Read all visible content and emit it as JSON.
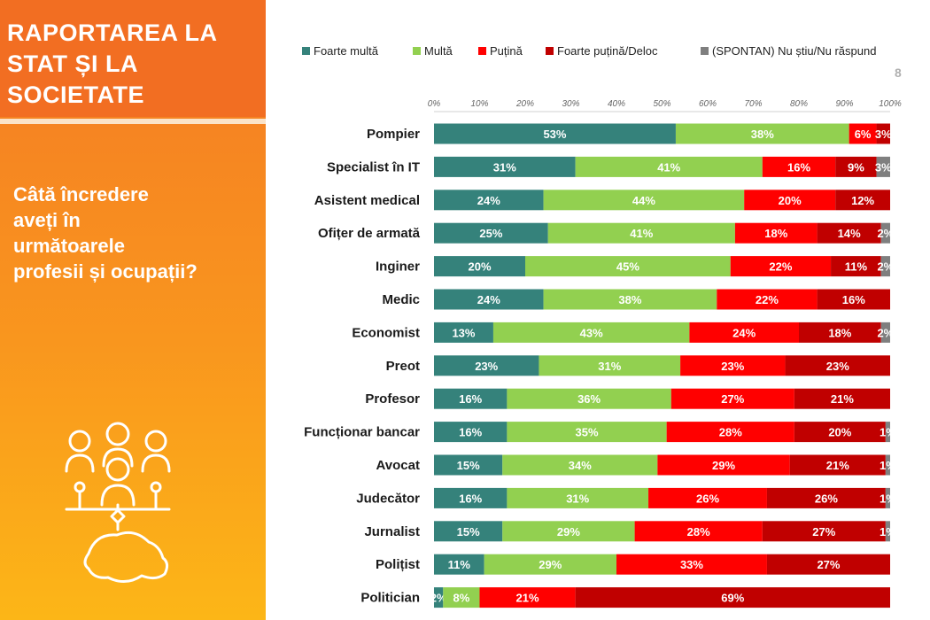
{
  "sidebar": {
    "title": "RAPORTAREA LA\nSTAT ȘI LA\nSOCIETATE",
    "question": "Câtă încredere\naveți în\nurmătoarele\nprofesii și ocupații?",
    "icon": "people-network-romania-map-icon"
  },
  "page_number": "8",
  "colors": {
    "foarte_multa": "#35827b",
    "multa": "#92d050",
    "putina": "#ff0000",
    "foarte_putina": "#c00000",
    "spontan": "#7f7f7f",
    "sidebar_orange": "#f47a24"
  },
  "chart_data": {
    "type": "bar",
    "orientation": "horizontal",
    "stacked": "percent",
    "xlim": [
      0,
      100
    ],
    "tick_labels": [
      "0%",
      "10%",
      "20%",
      "30%",
      "40%",
      "50%",
      "60%",
      "70%",
      "80%",
      "90%",
      "100%"
    ],
    "legend_position": "top",
    "grid": false,
    "categories": [
      "Pompier",
      "Specialist în IT",
      "Asistent medical",
      "Ofițer de armată",
      "Inginer",
      "Medic",
      "Economist",
      "Preot",
      "Profesor",
      "Funcționar bancar",
      "Avocat",
      "Judecător",
      "Jurnalist",
      "Polițist",
      "Politician"
    ],
    "series": [
      {
        "name": "Foarte multă",
        "color": "#35827b",
        "values": [
          53,
          31,
          24,
          25,
          20,
          24,
          13,
          23,
          16,
          16,
          15,
          16,
          15,
          11,
          2
        ]
      },
      {
        "name": "Multă",
        "color": "#92d050",
        "values": [
          38,
          41,
          44,
          41,
          45,
          38,
          43,
          31,
          36,
          35,
          34,
          31,
          29,
          29,
          8
        ]
      },
      {
        "name": "Puțină",
        "color": "#ff0000",
        "values": [
          6,
          16,
          20,
          18,
          22,
          22,
          24,
          23,
          27,
          28,
          29,
          26,
          28,
          33,
          21
        ]
      },
      {
        "name": "Foarte puțină/Deloc",
        "color": "#c00000",
        "values": [
          3,
          9,
          12,
          14,
          11,
          16,
          18,
          23,
          21,
          20,
          21,
          26,
          27,
          27,
          69
        ]
      },
      {
        "name": "(SPONTAN) Nu știu/Nu răspund",
        "color": "#7f7f7f",
        "values": [
          null,
          3,
          null,
          2,
          2,
          null,
          2,
          null,
          null,
          1,
          1,
          1,
          1,
          null,
          null
        ]
      }
    ],
    "value_labels": [
      [
        "53%",
        "38%",
        "6%",
        "3%",
        ""
      ],
      [
        "31%",
        "41%",
        "16%",
        "9%",
        "3%"
      ],
      [
        "24%",
        "44%",
        "20%",
        "12%",
        ""
      ],
      [
        "25%",
        "41%",
        "18%",
        "14%",
        "2%"
      ],
      [
        "20%",
        "45%",
        "22%",
        "11%",
        "2%"
      ],
      [
        "24%",
        "38%",
        "22%",
        "16%",
        ""
      ],
      [
        "13%",
        "43%",
        "24%",
        "18%",
        "2%"
      ],
      [
        "23%",
        "31%",
        "23%",
        "23%",
        ""
      ],
      [
        "16%",
        "36%",
        "27%",
        "21%",
        ""
      ],
      [
        "16%",
        "35%",
        "28%",
        "20%",
        "1%"
      ],
      [
        "15%",
        "34%",
        "29%",
        "21%",
        "1%"
      ],
      [
        "16%",
        "31%",
        "26%",
        "26%",
        "1%"
      ],
      [
        "15%",
        "29%",
        "28%",
        "27%",
        "1%"
      ],
      [
        "11%",
        "29%",
        "33%",
        "27%",
        ""
      ],
      [
        "2%",
        "8%",
        "21%",
        "69%",
        ""
      ]
    ]
  }
}
